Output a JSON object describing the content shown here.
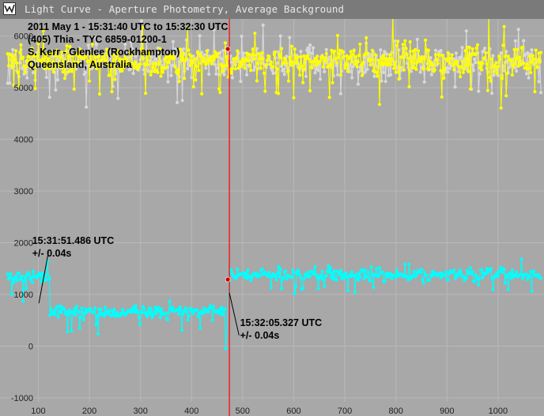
{
  "window": {
    "title": "Light Curve - Aperture Photometry, Average Background",
    "icon": "light-curve-app-icon"
  },
  "colors": {
    "background": "#a8a8a8",
    "grid": "#b9b9b9",
    "target_series": "#00ffff",
    "comparison_1": "#ffff00",
    "comparison_2": "#d8d8d8",
    "cursor_line": "#ff0000",
    "cursor_point": "#cc0000"
  },
  "chart_data": {
    "type": "line",
    "header_lines": [
      "2011 May 1 - 15:31:40 UTC to 15:32:30 UTC",
      "(405) Thia - TYC 6859-01200-1",
      "S. Kerr - Glenlee (Rockhampton)",
      "Queensland, Australia"
    ],
    "xlim": [
      25,
      1090
    ],
    "ylim": [
      -1000,
      6300
    ],
    "x_ticks": [
      100,
      200,
      300,
      400,
      500,
      600,
      700,
      800,
      900,
      1000
    ],
    "y_ticks": [
      -1000,
      0,
      1000,
      2000,
      3000,
      4000,
      5000,
      6000
    ],
    "grid": true,
    "cursor_x": 474,
    "series": [
      {
        "role": "target",
        "color": "#00ffff",
        "segments": [
          {
            "x_start": 40,
            "x_end": 123,
            "mean": 1330,
            "noise": 100
          },
          {
            "x_start": 123,
            "x_end": 468,
            "mean": 670,
            "noise": 70
          },
          {
            "x_start": 474,
            "x_end": 1085,
            "mean": 1380,
            "noise": 80
          }
        ],
        "dips": [
          [
            157,
            280
          ],
          [
            165,
            300
          ],
          [
            182,
            350
          ],
          [
            218,
            240
          ],
          [
            300,
            420
          ],
          [
            382,
            310
          ],
          [
            418,
            350
          ],
          [
            467,
            -50
          ]
        ]
      },
      {
        "role": "comparison",
        "color": "#ffff00",
        "segments": [
          {
            "x_start": 40,
            "x_end": 1085,
            "mean": 5520,
            "noise": 210
          }
        ]
      },
      {
        "role": "comparison",
        "color": "#d8d8d8",
        "segments": [
          {
            "x_start": 40,
            "x_end": 1085,
            "mean": 5480,
            "noise": 230
          }
        ]
      }
    ],
    "markers": [
      {
        "x": 471,
        "y": 1290,
        "color": "#cc0000"
      },
      {
        "x": 471,
        "y": 5750,
        "color": "#cc0000"
      }
    ],
    "annotations": [
      {
        "lines": [
          "15:31:51.486 UTC",
          "+/- 0.04s"
        ],
        "label_x": 88,
        "label_y": 1980,
        "pointer": [
          [
            120,
            1830
          ],
          [
            101,
            830
          ]
        ]
      },
      {
        "lines": [
          "15:32:05.327 UTC",
          "+/- 0.04s"
        ],
        "label_x": 495,
        "label_y": 390,
        "pointer": [
          [
            493,
            210
          ],
          [
            474,
            1030
          ]
        ]
      }
    ]
  }
}
